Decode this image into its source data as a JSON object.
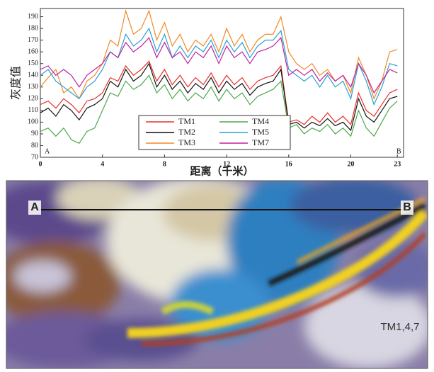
{
  "chart_data": {
    "type": "line",
    "y_label": "灰度值",
    "x_label": "距离（千米）",
    "annotations": [
      "A",
      "B"
    ],
    "xlim": [
      0,
      23.4
    ],
    "ylim": [
      70,
      197
    ],
    "xticks": [
      0,
      4,
      8,
      12,
      16,
      20,
      23
    ],
    "yticks": [
      70,
      80,
      90,
      100,
      110,
      120,
      130,
      140,
      150,
      160,
      170,
      180,
      190
    ],
    "x": [
      0,
      0.5,
      1,
      1.5,
      2,
      2.5,
      3,
      3.5,
      4,
      4.5,
      5,
      5.5,
      6,
      6.5,
      7,
      7.5,
      8,
      8.5,
      9,
      9.5,
      10,
      10.5,
      11,
      11.5,
      12,
      12.5,
      13,
      13.5,
      14,
      14.5,
      15,
      15.5,
      16,
      16.5,
      17,
      17.5,
      18,
      18.5,
      19,
      19.5,
      20,
      20.5,
      21,
      21.5,
      22,
      22.5,
      23
    ],
    "series": [
      {
        "name": "TM1",
        "color": "#e8302a",
        "values": [
          115,
          118,
          112,
          120,
          115,
          108,
          118,
          120,
          125,
          138,
          135,
          148,
          140,
          145,
          152,
          135,
          145,
          132,
          140,
          130,
          138,
          132,
          142,
          130,
          140,
          132,
          138,
          128,
          135,
          138,
          140,
          148,
          100,
          102,
          98,
          105,
          100,
          108,
          100,
          105,
          98,
          125,
          110,
          105,
          115,
          125,
          128
        ]
      },
      {
        "name": "TM2",
        "color": "#111111",
        "values": [
          108,
          112,
          105,
          115,
          110,
          102,
          112,
          115,
          120,
          135,
          130,
          145,
          135,
          140,
          150,
          130,
          140,
          128,
          135,
          125,
          133,
          128,
          138,
          125,
          135,
          128,
          133,
          123,
          130,
          133,
          135,
          145,
          98,
          100,
          95,
          100,
          97,
          103,
          97,
          100,
          93,
          120,
          105,
          100,
          110,
          120,
          122
        ]
      },
      {
        "name": "TM3",
        "color": "#f08a24",
        "values": [
          130,
          138,
          145,
          125,
          130,
          120,
          135,
          140,
          150,
          170,
          165,
          195,
          175,
          180,
          195,
          170,
          185,
          165,
          175,
          160,
          170,
          165,
          175,
          160,
          180,
          165,
          175,
          160,
          170,
          175,
          175,
          190,
          160,
          150,
          145,
          150,
          140,
          145,
          135,
          140,
          125,
          155,
          140,
          120,
          135,
          160,
          162
        ]
      },
      {
        "name": "TM4",
        "color": "#4aa84a",
        "values": [
          92,
          95,
          88,
          95,
          85,
          82,
          92,
          95,
          110,
          125,
          122,
          135,
          128,
          132,
          140,
          125,
          132,
          120,
          128,
          118,
          125,
          120,
          130,
          118,
          128,
          120,
          125,
          115,
          122,
          125,
          128,
          135,
          95,
          98,
          90,
          95,
          92,
          98,
          90,
          95,
          88,
          110,
          95,
          88,
          100,
          112,
          118
        ]
      },
      {
        "name": "TM5",
        "color": "#2a9fd8",
        "values": [
          140,
          145,
          135,
          130,
          125,
          120,
          130,
          135,
          145,
          160,
          155,
          175,
          165,
          170,
          180,
          160,
          175,
          155,
          165,
          155,
          165,
          160,
          170,
          155,
          170,
          160,
          168,
          155,
          165,
          170,
          170,
          178,
          145,
          140,
          135,
          140,
          130,
          140,
          130,
          135,
          120,
          150,
          135,
          115,
          130,
          150,
          148
        ]
      },
      {
        "name": "TM7",
        "color": "#c0209a",
        "values": [
          145,
          148,
          140,
          145,
          140,
          130,
          140,
          145,
          150,
          160,
          155,
          168,
          160,
          165,
          172,
          155,
          168,
          155,
          160,
          150,
          160,
          155,
          165,
          150,
          165,
          155,
          160,
          150,
          160,
          162,
          165,
          172,
          140,
          145,
          140,
          145,
          135,
          142,
          135,
          140,
          130,
          150,
          140,
          125,
          135,
          145,
          142
        ]
      }
    ]
  },
  "image": {
    "labels": [
      "A",
      "B",
      "TM1,4,7"
    ]
  }
}
